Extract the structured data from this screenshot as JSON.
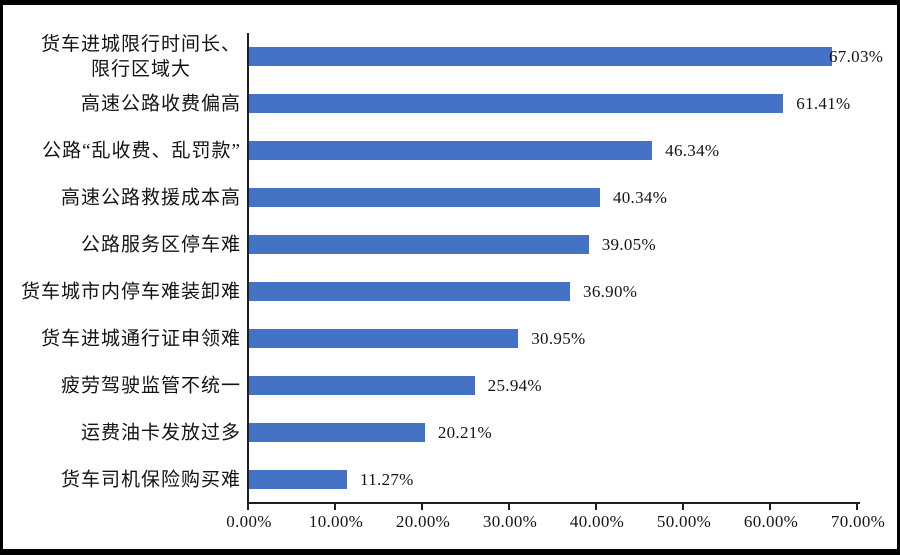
{
  "chart_data": {
    "type": "bar",
    "orientation": "horizontal",
    "title": "",
    "xlabel": "",
    "ylabel": "",
    "categories": [
      "货车进城限行时间长、\n限行区域大",
      "高速公路收费偏高",
      "公路“乱收费、乱罚款”",
      "高速公路救援成本高",
      "公路服务区停车难",
      "货车城市内停车难装卸难",
      "货车进城通行证申领难",
      "疲劳驾驶监管不统一",
      "运费油卡发放过多",
      "货车司机保险购买难"
    ],
    "values": [
      67.03,
      61.41,
      46.34,
      40.34,
      39.05,
      36.9,
      30.95,
      25.94,
      20.21,
      11.27
    ],
    "data_labels": [
      "67.03%",
      "61.41%",
      "46.34%",
      "40.34%",
      "39.05%",
      "36.90%",
      "30.95%",
      "25.94%",
      "20.21%",
      "11.27%"
    ],
    "x_ticks": [
      "0.00%",
      "10.00%",
      "20.00%",
      "30.00%",
      "40.00%",
      "50.00%",
      "60.00%",
      "70.00%"
    ],
    "xlim": [
      0,
      70
    ],
    "x_tick_step": 10,
    "grid": false,
    "legend": false,
    "bar_color": "#4472C4",
    "axis_color": "#1f1f1f",
    "text_color": "#141414",
    "frame_color": "#000000",
    "background": "#ffffff"
  }
}
